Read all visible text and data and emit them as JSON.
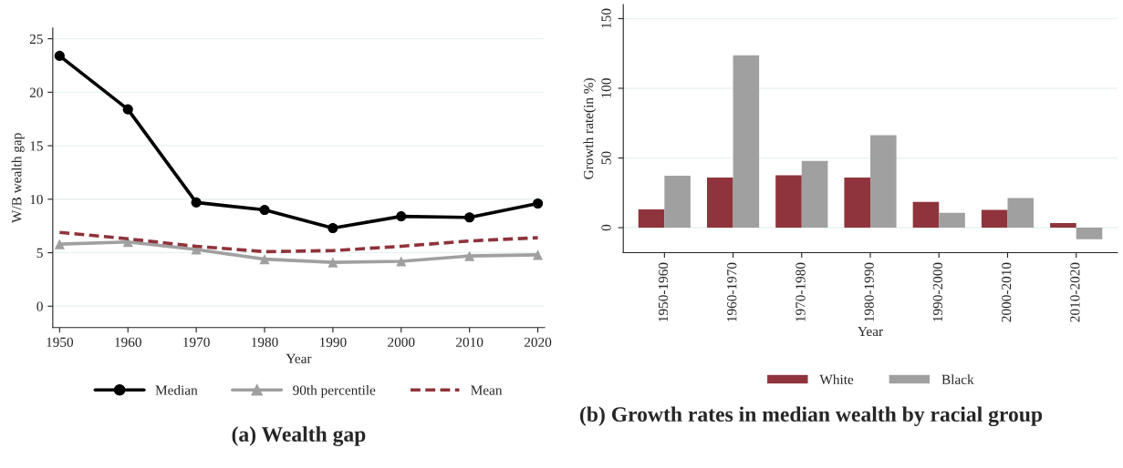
{
  "chart_data": [
    {
      "type": "line",
      "title": "(a) Wealth gap",
      "xlabel": "Year",
      "ylabel": "W/B wealth gap",
      "x": [
        1950,
        1960,
        1970,
        1980,
        1990,
        2000,
        2010,
        2020
      ],
      "series": [
        {
          "name": "Median",
          "color": "#000000",
          "marker": "circle",
          "line_style": "solid",
          "values": [
            23.4,
            18.4,
            9.7,
            9.0,
            7.3,
            8.4,
            8.3,
            9.6
          ]
        },
        {
          "name": "90th percentile",
          "color": "#a0a0a0",
          "marker": "triangle",
          "line_style": "solid",
          "values": [
            5.8,
            6.0,
            5.3,
            4.4,
            4.1,
            4.2,
            4.7,
            4.8
          ]
        },
        {
          "name": "Mean",
          "color": "#8f333b",
          "marker": "none",
          "line_style": "dashed",
          "values": [
            6.9,
            6.3,
            5.6,
            5.1,
            5.2,
            5.6,
            6.1,
            6.4
          ]
        }
      ],
      "xlim": [
        1949,
        2021
      ],
      "xticks": [
        1950,
        1960,
        1970,
        1980,
        1990,
        2000,
        2010,
        2020
      ],
      "ylim": [
        -2,
        26
      ],
      "yticks": [
        0,
        5,
        10,
        15,
        20,
        25
      ],
      "grid": "y",
      "legend": "bottom"
    },
    {
      "type": "bar",
      "title": "(b) Growth rates in median wealth by racial group",
      "xlabel": "Year",
      "ylabel": "Growth rate(in %)",
      "categories": [
        "1950-1960",
        "1960-1970",
        "1970-1980",
        "1980-1990",
        "1990-2000",
        "2000-2010",
        "2010-2020"
      ],
      "series": [
        {
          "name": "White",
          "color": "#8f343c",
          "values": [
            13,
            36,
            37.5,
            36,
            18.5,
            12.7,
            3.2
          ]
        },
        {
          "name": "Black",
          "color": "#a0a0a0",
          "values": [
            37.3,
            123.7,
            47.8,
            66.3,
            10.7,
            21.2,
            -8.3
          ]
        }
      ],
      "ylim": [
        -18,
        160
      ],
      "yticks": [
        0,
        50,
        100,
        150
      ],
      "grid": "y",
      "legend": "bottom"
    }
  ]
}
